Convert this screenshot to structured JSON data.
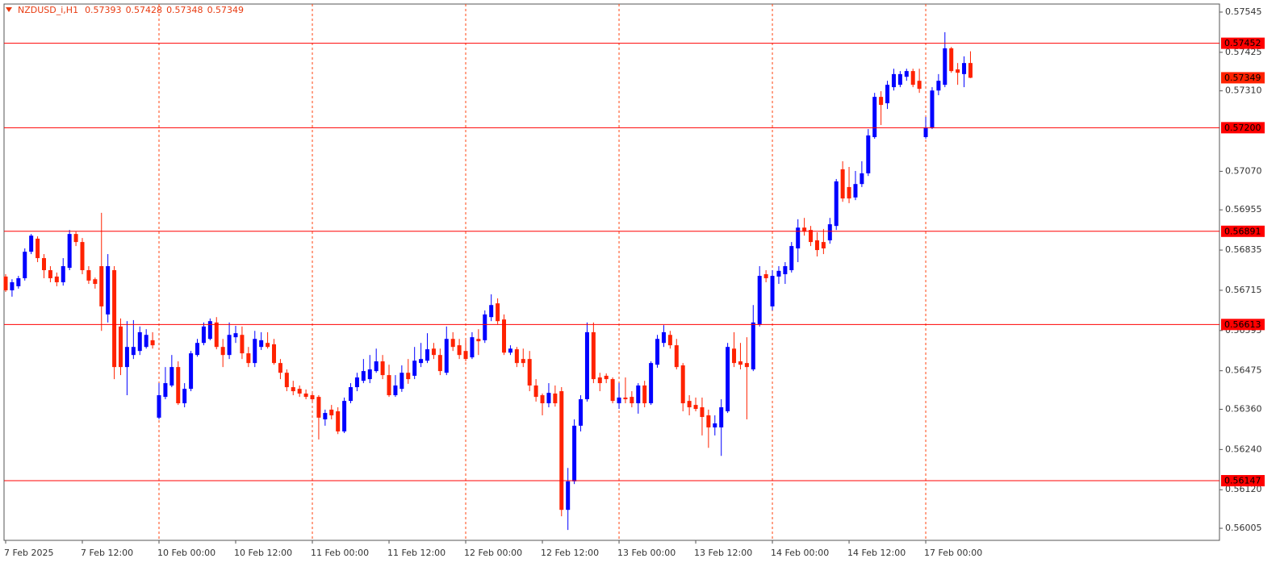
{
  "chart_data": {
    "type": "candlestick",
    "title": "NZDUSD_i,H1",
    "categories": [
      "7 Feb 2025",
      null,
      null,
      null,
      null,
      null,
      null,
      null,
      null,
      null,
      null,
      null,
      "7 Feb 12:00",
      null,
      null,
      null,
      null,
      null,
      null,
      null,
      null,
      null,
      null,
      null,
      "10 Feb 00:00",
      null,
      null,
      null,
      null,
      null,
      null,
      null,
      null,
      null,
      null,
      null,
      "10 Feb 12:00",
      null,
      null,
      null,
      null,
      null,
      null,
      null,
      null,
      null,
      null,
      null,
      "11 Feb 00:00",
      null,
      null,
      null,
      null,
      null,
      null,
      null,
      null,
      null,
      null,
      null,
      "11 Feb 12:00",
      null,
      null,
      null,
      null,
      null,
      null,
      null,
      null,
      null,
      null,
      null,
      "12 Feb 00:00",
      null,
      null,
      null,
      null,
      null,
      null,
      null,
      null,
      null,
      null,
      null,
      "12 Feb 12:00",
      null,
      null,
      null,
      null,
      null,
      null,
      null,
      null,
      null,
      null,
      null,
      "13 Feb 00:00",
      null,
      null,
      null,
      null,
      null,
      null,
      null,
      null,
      null,
      null,
      null,
      "13 Feb 12:00",
      null,
      null,
      null,
      null,
      null,
      null,
      null,
      null,
      null,
      null,
      null,
      "14 Feb 00:00",
      null,
      null,
      null,
      null,
      null,
      null,
      null,
      null,
      null,
      null,
      null,
      "14 Feb 12:00",
      null,
      null,
      null,
      null,
      null,
      null,
      null,
      null,
      null,
      null,
      null,
      "17 Feb 00:00",
      null,
      null,
      null,
      null,
      null,
      null,
      null
    ],
    "open": [
      0.56756,
      0.56715,
      0.56727,
      0.56751,
      0.5683,
      0.56869,
      0.56811,
      0.56775,
      0.56756,
      0.56739,
      0.56782,
      0.56883,
      0.56859,
      0.56775,
      0.56748,
      0.56787,
      0.56643,
      0.56775,
      0.56607,
      0.56486,
      0.56522,
      0.56534,
      0.56546,
      0.56566,
      0.56335,
      0.56397,
      0.56431,
      0.56486,
      0.56378,
      0.56421,
      0.56522,
      0.56558,
      0.5657,
      0.56619,
      0.56546,
      0.56522,
      0.56575,
      0.56582,
      0.56527,
      0.56498,
      0.56546,
      0.56558,
      0.56554,
      0.56498,
      0.56469,
      0.56426,
      0.56421,
      0.56407,
      0.56402,
      0.56397,
      0.5633,
      0.56359,
      0.56354,
      0.56294,
      0.56385,
      0.56426,
      0.56445,
      0.5645,
      0.56474,
      0.56503,
      0.56462,
      0.56402,
      0.56421,
      0.56469,
      0.5646,
      0.56498,
      0.56505,
      0.56541,
      0.56522,
      0.56469,
      0.5657,
      0.56551,
      0.56534,
      0.56515,
      0.5657,
      0.56566,
      0.56635,
      0.56676,
      0.56628,
      0.56529,
      0.56539,
      0.5651,
      0.5651,
      0.56431,
      0.56402,
      0.56378,
      0.56407,
      0.56414,
      0.5606,
      0.56145,
      0.56311,
      0.5639,
      0.5659,
      0.56455,
      0.5646,
      0.5645,
      0.56378,
      0.56395,
      0.56397,
      0.56378,
      0.56431,
      0.56378,
      0.56493,
      0.56558,
      0.56582,
      0.56551,
      0.56491,
      0.56385,
      0.56373,
      0.56366,
      0.56342,
      0.56306,
      0.56306,
      0.56354,
      0.56541,
      0.56503,
      0.56498,
      0.56479,
      0.56614,
      0.56763,
      0.56667,
      0.56756,
      0.56763,
      0.56775,
      0.5684,
      0.56902,
      0.56895,
      0.56864,
      0.56859,
      0.56864,
      0.56907,
      0.57076,
      0.57023,
      0.56992,
      0.57032,
      0.57064,
      0.57172,
      0.57292,
      0.57273,
      0.57321,
      0.57328,
      0.57352,
      0.57369,
      0.5734,
      0.57172,
      0.57201,
      0.57311,
      0.57328,
      0.57437,
      0.57374,
      0.5736,
      0.57393
    ],
    "high": [
      0.56763,
      0.56748,
      0.56758,
      0.5684,
      0.56883,
      0.56876,
      0.56823,
      0.56787,
      0.56768,
      0.56811,
      0.56895,
      0.5689,
      0.56871,
      0.56787,
      0.56753,
      0.56946,
      0.56823,
      0.56787,
      0.56631,
      0.56623,
      0.56626,
      0.56607,
      0.56599,
      0.5659,
      0.56438,
      0.56486,
      0.56522,
      0.56503,
      0.56438,
      0.56534,
      0.5657,
      0.56619,
      0.56631,
      0.56635,
      0.5657,
      0.56619,
      0.56609,
      0.56607,
      0.56546,
      0.56594,
      0.5659,
      0.5659,
      0.5657,
      0.5651,
      0.56479,
      0.56445,
      0.56431,
      0.56419,
      0.56407,
      0.56402,
      0.56359,
      0.56373,
      0.56366,
      0.56395,
      0.56438,
      0.56469,
      0.5651,
      0.56522,
      0.56541,
      0.56522,
      0.56493,
      0.56462,
      0.56491,
      0.5651,
      0.56546,
      0.56558,
      0.56587,
      0.56558,
      0.56541,
      0.56607,
      0.5659,
      0.5657,
      0.56566,
      0.5659,
      0.56599,
      0.56655,
      0.56703,
      0.56691,
      0.56643,
      0.56551,
      0.56546,
      0.56541,
      0.56534,
      0.5645,
      0.56407,
      0.56438,
      0.56431,
      0.56426,
      0.56185,
      0.5633,
      0.56402,
      0.56619,
      0.56619,
      0.56469,
      0.56467,
      0.56455,
      0.56438,
      0.56455,
      0.56414,
      0.56438,
      0.56445,
      0.56503,
      0.56582,
      0.56611,
      0.56594,
      0.5657,
      0.56498,
      0.56402,
      0.56395,
      0.56395,
      0.56359,
      0.56342,
      0.5639,
      0.56558,
      0.5659,
      0.56558,
      0.56575,
      0.56671,
      0.56787,
      0.56775,
      0.56775,
      0.56787,
      0.56799,
      0.56859,
      0.56927,
      0.56931,
      0.56907,
      0.56888,
      0.56898,
      0.56931,
      0.57047,
      0.571,
      0.57083,
      0.57071,
      0.571,
      0.57196,
      0.57304,
      0.57309,
      0.5734,
      0.57376,
      0.57369,
      0.57376,
      0.57376,
      0.57376,
      0.57232,
      0.57321,
      0.5736,
      0.57485,
      0.57441,
      0.57393,
      0.57413,
      0.57428
    ],
    "low": [
      0.5671,
      0.56696,
      0.5672,
      0.56744,
      0.56823,
      0.56799,
      0.56751,
      0.56739,
      0.56727,
      0.56729,
      0.56775,
      0.56847,
      0.56763,
      0.56734,
      0.5672,
      0.56594,
      0.56619,
      0.5645,
      0.56462,
      0.56402,
      0.5651,
      0.56522,
      0.56541,
      0.56541,
      0.5633,
      0.5639,
      0.56426,
      0.56373,
      0.56366,
      0.56414,
      0.56517,
      0.56551,
      0.56566,
      0.56539,
      0.56486,
      0.5651,
      0.56558,
      0.5651,
      0.56486,
      0.56486,
      0.56537,
      0.56541,
      0.56493,
      0.5645,
      0.56414,
      0.56402,
      0.56397,
      0.5639,
      0.56383,
      0.5627,
      0.56311,
      0.5633,
      0.56286,
      0.56289,
      0.56378,
      0.56414,
      0.56438,
      0.56438,
      0.56469,
      0.5645,
      0.56397,
      0.56397,
      0.56412,
      0.56436,
      0.5645,
      0.56486,
      0.56498,
      0.5651,
      0.56462,
      0.56462,
      0.56534,
      0.5651,
      0.56503,
      0.5651,
      0.56522,
      0.56558,
      0.56623,
      0.56614,
      0.56522,
      0.56522,
      0.56486,
      0.56486,
      0.56414,
      0.56383,
      0.56342,
      0.56366,
      0.56368,
      0.56041,
      0.56,
      0.56137,
      0.56294,
      0.56383,
      0.56438,
      0.56414,
      0.56438,
      0.56378,
      0.56361,
      0.56378,
      0.56366,
      0.56347,
      0.56366,
      0.56373,
      0.56484,
      0.56546,
      0.56541,
      0.56479,
      0.56354,
      0.56342,
      0.56354,
      0.56282,
      0.56245,
      0.56282,
      0.56221,
      0.56349,
      0.56486,
      0.56479,
      0.5633,
      0.56474,
      0.56607,
      0.56739,
      0.56655,
      0.56734,
      0.56734,
      0.56768,
      0.56799,
      0.56878,
      0.56847,
      0.56816,
      0.56823,
      0.56854,
      0.56895,
      0.56979,
      0.56975,
      0.56984,
      0.57023,
      0.57056,
      0.57167,
      0.57208,
      0.57256,
      0.57311,
      0.57321,
      0.5734,
      0.57321,
      0.57304,
      0.57167,
      0.57196,
      0.57297,
      0.57321,
      0.57364,
      0.57328,
      0.57321,
      0.57348
    ],
    "close": [
      0.56715,
      0.56739,
      0.56751,
      0.5683,
      0.56878,
      0.56811,
      0.56775,
      0.56751,
      0.56739,
      0.56787,
      0.56883,
      0.56859,
      0.56775,
      0.56744,
      0.56734,
      0.56667,
      0.56787,
      0.56486,
      0.56486,
      0.56546,
      0.56546,
      0.5659,
      0.56582,
      0.56551,
      0.56402,
      0.56438,
      0.56486,
      0.56378,
      0.56421,
      0.56527,
      0.56558,
      0.56607,
      0.56623,
      0.56546,
      0.56522,
      0.56582,
      0.56587,
      0.56527,
      0.56498,
      0.5657,
      0.56566,
      0.56546,
      0.56498,
      0.56469,
      0.56426,
      0.56414,
      0.56407,
      0.56397,
      0.5639,
      0.56335,
      0.56349,
      0.56342,
      0.56294,
      0.56385,
      0.56426,
      0.56455,
      0.56474,
      0.56479,
      0.56503,
      0.56462,
      0.56402,
      0.56431,
      0.56469,
      0.5645,
      0.56505,
      0.5651,
      0.56539,
      0.56522,
      0.56474,
      0.5657,
      0.56546,
      0.56522,
      0.5651,
      0.56575,
      0.56563,
      0.56643,
      0.56671,
      0.56623,
      0.56529,
      0.56541,
      0.56498,
      0.56498,
      0.56431,
      0.56397,
      0.56378,
      0.56409,
      0.56378,
      0.5606,
      0.56145,
      0.56311,
      0.5639,
      0.5659,
      0.5645,
      0.56438,
      0.5645,
      0.56385,
      0.56395,
      0.5639,
      0.56378,
      0.56431,
      0.56378,
      0.56498,
      0.5657,
      0.5659,
      0.56551,
      0.56486,
      0.56378,
      0.56366,
      0.56361,
      0.56337,
      0.56306,
      0.56318,
      0.56366,
      0.56546,
      0.56498,
      0.56493,
      0.56486,
      0.56619,
      0.56758,
      0.56751,
      0.56758,
      0.56773,
      0.56787,
      0.56847,
      0.56902,
      0.5689,
      0.56859,
      0.56835,
      0.5684,
      0.56912,
      0.5704,
      0.56989,
      0.56989,
      0.57032,
      0.57064,
      0.57177,
      0.57292,
      0.57268,
      0.57328,
      0.5736,
      0.5736,
      0.57369,
      0.57328,
      0.57316,
      0.57201,
      0.57311,
      0.5734,
      0.57437,
      0.57369,
      0.57364,
      0.57393,
      0.57349
    ],
    "up_color": "#0000ff",
    "down_color": "#ff2200",
    "ylim": [
      0.55969,
      0.57569
    ],
    "yticks": [
      0.57545,
      0.57425,
      {
        "value": 0.5731,
        "label": "0.57310"
      },
      {
        "value": 0.5707,
        "label": "0.57070"
      },
      0.56955,
      0.56835,
      0.56715,
      0.56595,
      0.56475,
      {
        "value": 0.5636,
        "label": "0.56360"
      },
      {
        "value": 0.5624,
        "label": "0.56240"
      },
      {
        "value": 0.5612,
        "label": "0.56120"
      },
      0.56005
    ],
    "levels": [
      0.57452,
      {
        "value": 0.572,
        "label": "0.57200"
      },
      0.56891,
      0.56613,
      0.56147
    ],
    "level_color": "#ff0000",
    "grid": true,
    "grid_color": "#ff4411"
  }
}
